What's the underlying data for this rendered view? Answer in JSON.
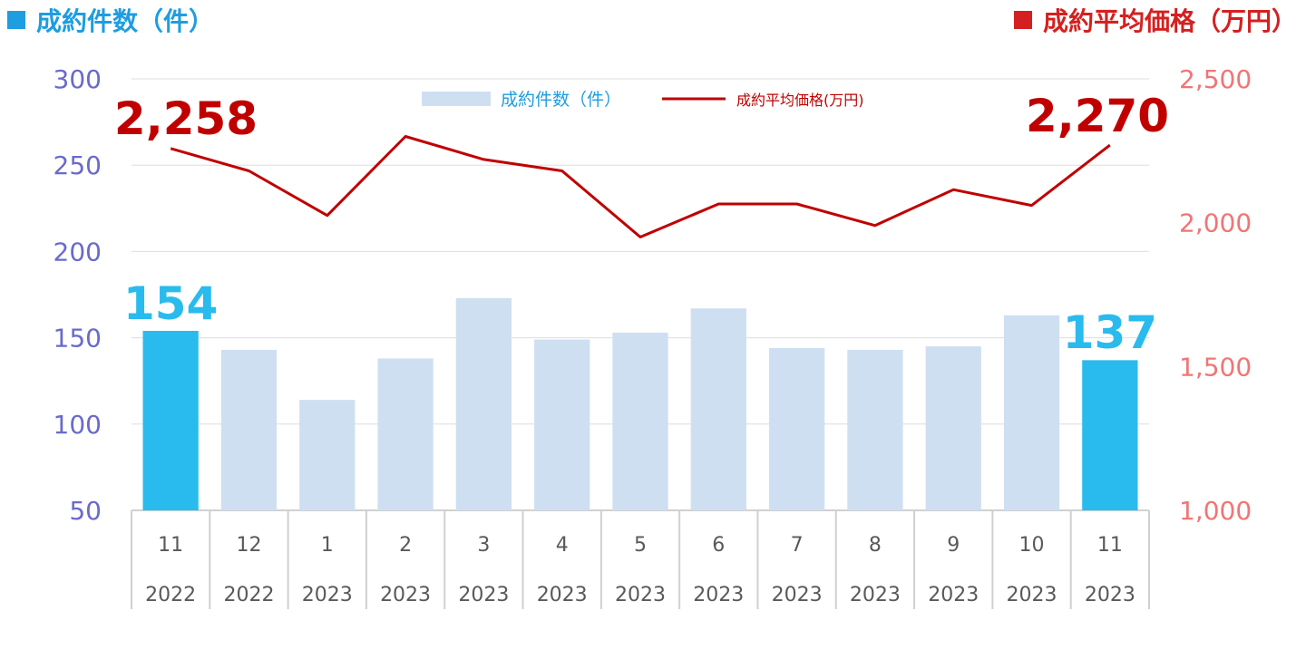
{
  "titles": {
    "left": "成約件数（件）",
    "right": "成約平均価格（万円）"
  },
  "colors": {
    "bar_light": "#cfdff2",
    "bar_highlight": "#29bbee",
    "line": "#c00000",
    "left_axis": "#6a6acc",
    "right_axis": "#f07575",
    "left_title": "#1e9de0",
    "right_title": "#d42020",
    "grid": "#dddddd"
  },
  "chart_data": {
    "type": "bar",
    "categories": [
      "11",
      "12",
      "1",
      "2",
      "3",
      "4",
      "5",
      "6",
      "7",
      "8",
      "9",
      "10",
      "11"
    ],
    "category_years": [
      "2022",
      "2022",
      "2023",
      "2023",
      "2023",
      "2023",
      "2023",
      "2023",
      "2023",
      "2023",
      "2023",
      "2023",
      "2023"
    ],
    "y_left": {
      "ticks": [
        "300",
        "250",
        "200",
        "150",
        "100",
        "50"
      ],
      "range": [
        50,
        300
      ]
    },
    "y_right": {
      "ticks": [
        "2,500",
        "2,000",
        "1,500",
        "1,000"
      ],
      "range": [
        1000,
        2500
      ]
    },
    "legend": {
      "bar": "成約件数（件）",
      "line": "成約平均価格(万円)"
    },
    "series": [
      {
        "name": "成約件数（件）",
        "type": "bar",
        "axis": "left",
        "values": [
          154,
          143,
          114,
          138,
          173,
          149,
          153,
          167,
          144,
          143,
          145,
          163,
          137
        ],
        "highlight": [
          0,
          12
        ]
      },
      {
        "name": "成約平均価格(万円)",
        "type": "line",
        "axis": "right",
        "values": [
          2258,
          2180,
          2025,
          2300,
          2220,
          2180,
          1950,
          2065,
          2065,
          1990,
          2115,
          2060,
          2270
        ]
      }
    ],
    "callouts": {
      "first_price": "2,258",
      "last_price": "2,270",
      "first_count": "154",
      "last_count": "137"
    },
    "grid": true,
    "legend_position": "top-center"
  }
}
